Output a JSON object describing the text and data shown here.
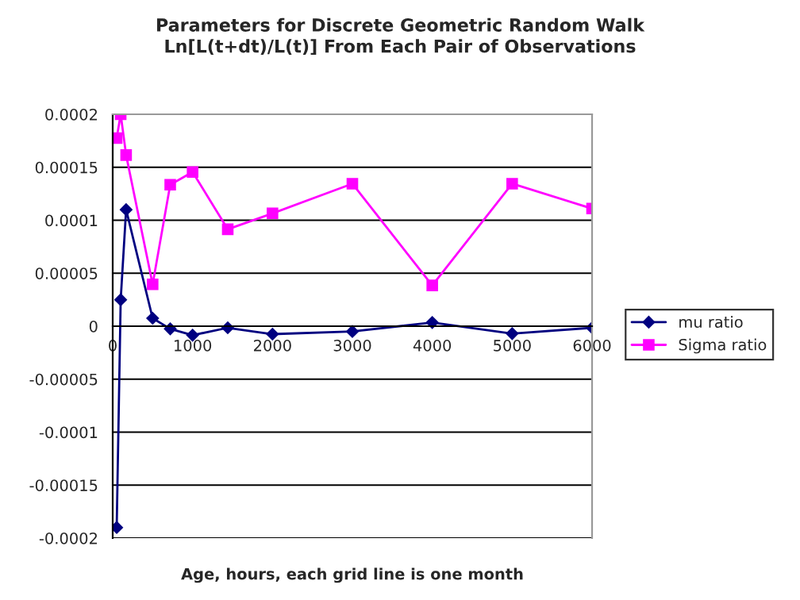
{
  "chart_data": {
    "type": "line",
    "title": "Parameters for Discrete Geometric Random Walk\nLn[L(t+dt)/L(t)] From Each Pair of Observations",
    "xlabel": "Age, hours, each grid line is one month",
    "xlim": [
      0,
      6000
    ],
    "xticks": [
      0,
      1000,
      2000,
      3000,
      4000,
      5000,
      6000
    ],
    "ylim": [
      -0.0002,
      0.0002
    ],
    "yticks": [
      {
        "value": -0.0002,
        "label": "-0.0002"
      },
      {
        "value": -0.00015,
        "label": "-0.00015"
      },
      {
        "value": -0.0001,
        "label": "-0.0001"
      },
      {
        "value": -5e-05,
        "label": "-0.00005"
      },
      0,
      {
        "value": 5e-05,
        "label": "0.00005"
      },
      {
        "value": 0.0001,
        "label": "0.0001"
      },
      {
        "value": 0.00015,
        "label": "0.00015"
      },
      {
        "value": 0.0002,
        "label": "0.0002"
      }
    ],
    "grid": "y",
    "legend": "right",
    "series": [
      {
        "name": "mu ratio",
        "color": "#000080",
        "marker": "diamond",
        "x": [
          50,
          100,
          168,
          500,
          720,
          1000,
          1440,
          2000,
          3000,
          4000,
          5000,
          6000
        ],
        "values": [
          -0.00019,
          2.5e-05,
          0.00011,
          7.5e-06,
          -2.5e-06,
          -8.5e-06,
          -1.5e-06,
          -7.5e-06,
          -5e-06,
          3.5e-06,
          -7e-06,
          -1.5e-06
        ]
      },
      {
        "name": "Sigma ratio",
        "color": "#ff00ff",
        "marker": "square",
        "x": [
          50,
          100,
          168,
          500,
          720,
          1000,
          1440,
          2000,
          3000,
          4000,
          5000,
          6000
        ],
        "values": [
          0.0001775,
          0.0002,
          0.0001615,
          3.95e-05,
          0.0001335,
          0.0001455,
          9.15e-05,
          0.0001065,
          0.0001345,
          3.85e-05,
          0.0001345,
          0.000111
        ]
      }
    ]
  }
}
